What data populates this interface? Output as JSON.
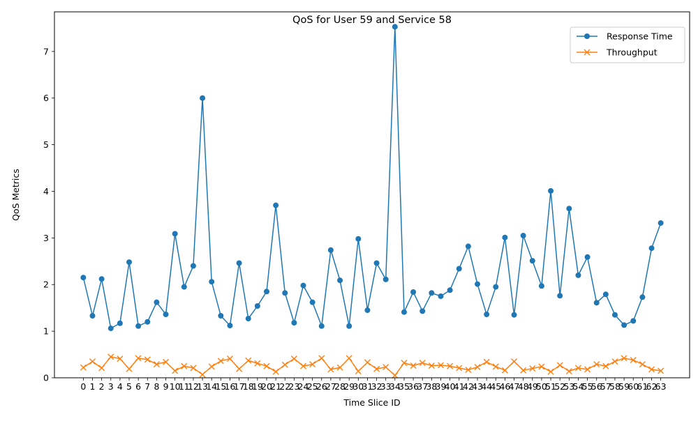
{
  "chart_data": {
    "type": "line",
    "title": "QoS for User 59 and Service 58",
    "xlabel": "Time Slice ID",
    "ylabel": "QoS Metrics",
    "x": [
      0,
      1,
      2,
      3,
      4,
      5,
      6,
      7,
      8,
      9,
      10,
      11,
      12,
      13,
      14,
      15,
      16,
      17,
      18,
      19,
      20,
      21,
      22,
      23,
      24,
      25,
      26,
      27,
      28,
      29,
      30,
      31,
      32,
      33,
      34,
      35,
      36,
      37,
      38,
      39,
      40,
      41,
      42,
      43,
      44,
      45,
      46,
      47,
      48,
      49,
      50,
      51,
      52,
      53,
      54,
      55,
      56,
      57,
      58,
      59,
      60,
      61,
      62,
      63
    ],
    "ylim": [
      0,
      7.85
    ],
    "yticks": [
      0,
      1,
      2,
      3,
      4,
      5,
      6,
      7
    ],
    "grid": false,
    "legend_position": "top-right",
    "series": [
      {
        "name": "Response Time",
        "color": "#1f77b4",
        "marker": "circle",
        "values": [
          2.15,
          1.33,
          2.12,
          1.06,
          1.17,
          2.48,
          1.11,
          1.2,
          1.62,
          1.36,
          3.09,
          1.95,
          2.4,
          6.0,
          2.06,
          1.33,
          1.12,
          2.46,
          1.27,
          1.54,
          1.85,
          3.7,
          1.82,
          1.18,
          1.98,
          1.62,
          1.11,
          2.74,
          2.09,
          1.11,
          2.98,
          1.45,
          2.46,
          2.11,
          7.53,
          1.41,
          1.84,
          1.43,
          1.82,
          1.75,
          1.88,
          2.34,
          2.82,
          2.01,
          1.36,
          1.95,
          3.01,
          1.35,
          3.05,
          2.51,
          1.97,
          4.01,
          1.76,
          3.63,
          2.2,
          2.59,
          1.61,
          1.79,
          1.35,
          1.13,
          1.22,
          1.73,
          2.78,
          3.32
        ]
      },
      {
        "name": "Throughput",
        "color": "#ff7f0e",
        "marker": "x",
        "values": [
          0.22,
          0.35,
          0.21,
          0.45,
          0.41,
          0.19,
          0.42,
          0.39,
          0.29,
          0.34,
          0.15,
          0.25,
          0.21,
          0.07,
          0.24,
          0.36,
          0.41,
          0.19,
          0.37,
          0.31,
          0.25,
          0.13,
          0.28,
          0.41,
          0.25,
          0.29,
          0.42,
          0.18,
          0.22,
          0.42,
          0.14,
          0.33,
          0.19,
          0.23,
          0.05,
          0.32,
          0.26,
          0.32,
          0.26,
          0.27,
          0.25,
          0.21,
          0.17,
          0.23,
          0.34,
          0.24,
          0.16,
          0.35,
          0.16,
          0.2,
          0.24,
          0.13,
          0.27,
          0.14,
          0.21,
          0.18,
          0.29,
          0.25,
          0.35,
          0.42,
          0.38,
          0.29,
          0.18,
          0.15
        ]
      }
    ]
  }
}
